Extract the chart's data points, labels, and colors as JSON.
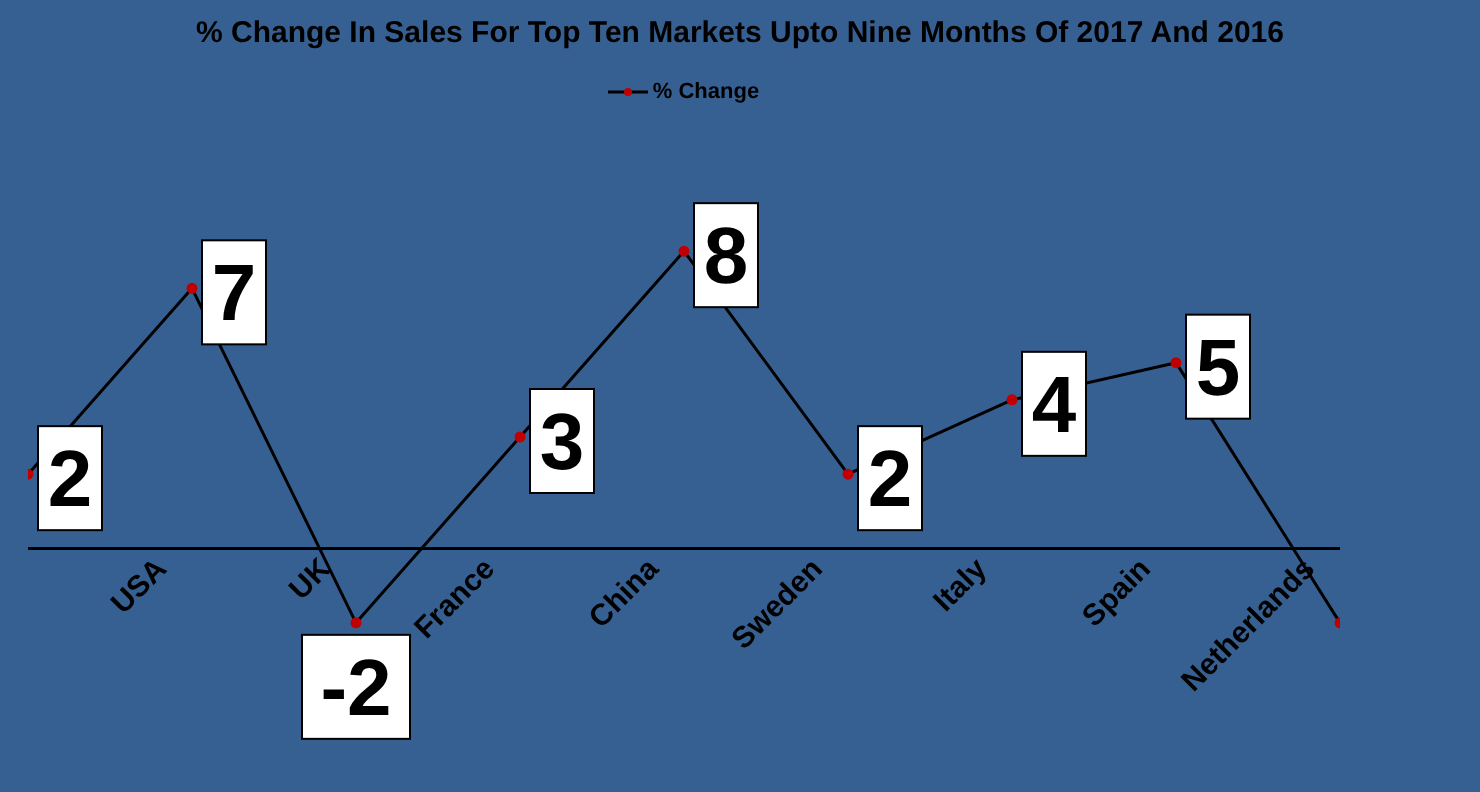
{
  "chart_data": {
    "type": "line",
    "title": "% Change In Sales For Top Ten Markets Upto Nine Months Of 2017 And 2016",
    "categories": [
      null,
      "USA",
      "UK",
      "France",
      "China",
      "Sweden",
      "Italy",
      "Spain",
      "Netherlands"
    ],
    "series": [
      {
        "name": "% Change",
        "color": "#000000",
        "values": [
          2,
          7,
          -2,
          3,
          8,
          2,
          4,
          5,
          -2
        ],
        "value_labels": [
          "2",
          "7",
          "-2",
          "3",
          "8",
          "2",
          "4",
          "5",
          null
        ]
      }
    ],
    "marker": "circle",
    "legend": "top"
  }
}
